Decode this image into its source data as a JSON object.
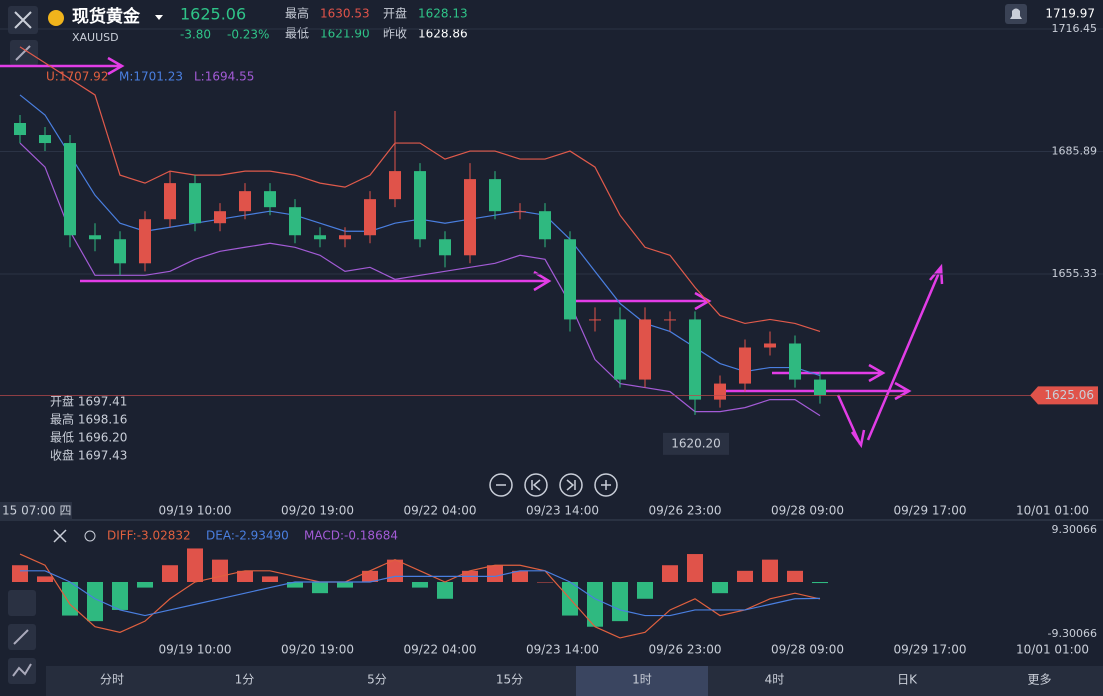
{
  "header": {
    "name": "现货黄金",
    "symbol": "XAUUSD",
    "price": "1625.06",
    "change": "-3.80",
    "change_pct": "-0.23%",
    "high_label": "最高",
    "high": "1630.53",
    "open_label": "开盘",
    "open": "1628.13",
    "low_label": "最低",
    "low": "1621.90",
    "prev_label": "昨收",
    "prev": "1628.86",
    "right_value": "1719.97"
  },
  "bollinger_legend": [
    "U:1707.92",
    "M:1701.23",
    "L:1694.55"
  ],
  "crosshair": {
    "time": "15 07:00 四",
    "rows": [
      "开盘 1697.41",
      "最高 1698.16",
      "最低 1696.20",
      "收盘 1697.43"
    ]
  },
  "macd_legend": [
    "DIFF:-3.02832",
    "DEA:-2.93490",
    "MACD:-0.18684"
  ],
  "time_labels": [
    "09/19 10:00",
    "09/20 19:00",
    "09/22 04:00",
    "09/23 14:00",
    "09/26 23:00",
    "09/28 09:00",
    "09/29 17:00",
    "10/01 01:00"
  ],
  "tabs": [
    "分时",
    "1分",
    "5分",
    "15分",
    "1时",
    "4时",
    "日K",
    "更多"
  ],
  "chart_data": {
    "type": "candlestick",
    "ylim": [
      1598.96,
      1723.68
    ],
    "yticks": [
      1716.45,
      1685.89,
      1655.33
    ],
    "last_price": 1625.06,
    "low_label": "1620.20",
    "up_color": "#e0534a",
    "down_color": "#2fb980",
    "candles": {
      "open": [
        1693,
        1690,
        1688,
        1665,
        1664,
        1658,
        1669,
        1678,
        1668,
        1671,
        1676,
        1672,
        1665,
        1664,
        1665,
        1674,
        1681,
        1664,
        1660,
        1679,
        1671,
        1671,
        1664,
        1644,
        1644,
        1629,
        1644,
        1644,
        1624,
        1628,
        1637,
        1638,
        1629
      ],
      "high": [
        1695,
        1692,
        1690,
        1668,
        1666,
        1671,
        1681,
        1680,
        1673,
        1678,
        1678,
        1674,
        1667,
        1667,
        1676,
        1696,
        1683,
        1666,
        1683,
        1681,
        1673,
        1673,
        1666,
        1647,
        1647,
        1647,
        1646,
        1646,
        1630,
        1639,
        1641,
        1640,
        1631
      ],
      "low": [
        1688,
        1686,
        1662,
        1661,
        1655,
        1656,
        1667,
        1666,
        1666,
        1669,
        1670,
        1663,
        1662,
        1662,
        1663,
        1672,
        1662,
        1657,
        1658,
        1669,
        1669,
        1662,
        1641,
        1641,
        1627,
        1627,
        1641,
        1620.2,
        1622,
        1626,
        1635,
        1627,
        1623
      ],
      "close": [
        1690,
        1688,
        1665,
        1664,
        1658,
        1669,
        1678,
        1668,
        1671,
        1676,
        1672,
        1665,
        1664,
        1665,
        1674,
        1681,
        1664,
        1660,
        1679,
        1671,
        1671,
        1664,
        1644,
        1644,
        1629,
        1644,
        1644,
        1624,
        1628,
        1637,
        1638,
        1629,
        1625.06
      ]
    },
    "bands": [
      {
        "color": "#e05a4b",
        "values": [
          1712,
          1708,
          1704,
          1700,
          1680,
          1678,
          1681,
          1680,
          1680,
          1681,
          1681,
          1680,
          1678,
          1677,
          1680,
          1688,
          1688,
          1684,
          1686,
          1686,
          1684,
          1684,
          1686,
          1682,
          1670,
          1662,
          1660,
          1652,
          1645,
          1643,
          1644,
          1643,
          1641
        ]
      },
      {
        "color": "#4a7fe0",
        "values": [
          1700,
          1695,
          1685,
          1675,
          1668,
          1666,
          1667,
          1668,
          1669,
          1670,
          1671,
          1670,
          1668,
          1666,
          1666,
          1668,
          1669,
          1668,
          1669,
          1670,
          1671,
          1670,
          1664,
          1656,
          1648,
          1643,
          1641,
          1637,
          1633,
          1631,
          1632,
          1632,
          1630
        ]
      },
      {
        "color": "#a35bd6",
        "values": [
          1688,
          1682,
          1666,
          1655,
          1655,
          1655,
          1656,
          1659,
          1661,
          1662,
          1663,
          1662,
          1660,
          1656,
          1657,
          1654,
          1655,
          1656,
          1657,
          1658,
          1660,
          1659,
          1648,
          1634,
          1628,
          1627,
          1626,
          1621,
          1621,
          1622,
          1624,
          1624,
          1620
        ]
      }
    ],
    "macd": {
      "ylim": [
        -9.30066,
        9.30066
      ],
      "yticks": [
        9.30066,
        -9.30066
      ],
      "histogram": [
        3,
        1,
        -6,
        -7,
        -5,
        -1,
        3,
        6,
        4,
        2,
        1,
        -1,
        -2,
        -1,
        2,
        4,
        -1,
        -3,
        2,
        3,
        2,
        0,
        -6,
        -8,
        -7,
        -3,
        3,
        5,
        -2,
        2,
        4,
        2,
        -0.19
      ],
      "diff": {
        "color": "#e0603f",
        "values": [
          5,
          3,
          -4,
          -8,
          -9,
          -7,
          -3,
          0,
          1,
          2,
          2,
          1,
          0,
          0,
          2,
          4,
          2,
          0,
          2,
          3,
          3,
          2,
          -3,
          -8,
          -10,
          -9,
          -5,
          -3,
          -6,
          -5,
          -3,
          -2,
          -3.03
        ]
      },
      "dea": {
        "color": "#4a7fe0",
        "values": [
          2,
          2,
          0,
          -3,
          -5,
          -6,
          -5,
          -4,
          -3,
          -2,
          -1,
          0,
          0,
          0,
          0,
          1,
          1,
          1,
          1,
          1,
          2,
          2,
          0,
          -3,
          -5,
          -6,
          -6,
          -5,
          -5,
          -5,
          -4,
          -3,
          -2.93
        ]
      }
    }
  }
}
